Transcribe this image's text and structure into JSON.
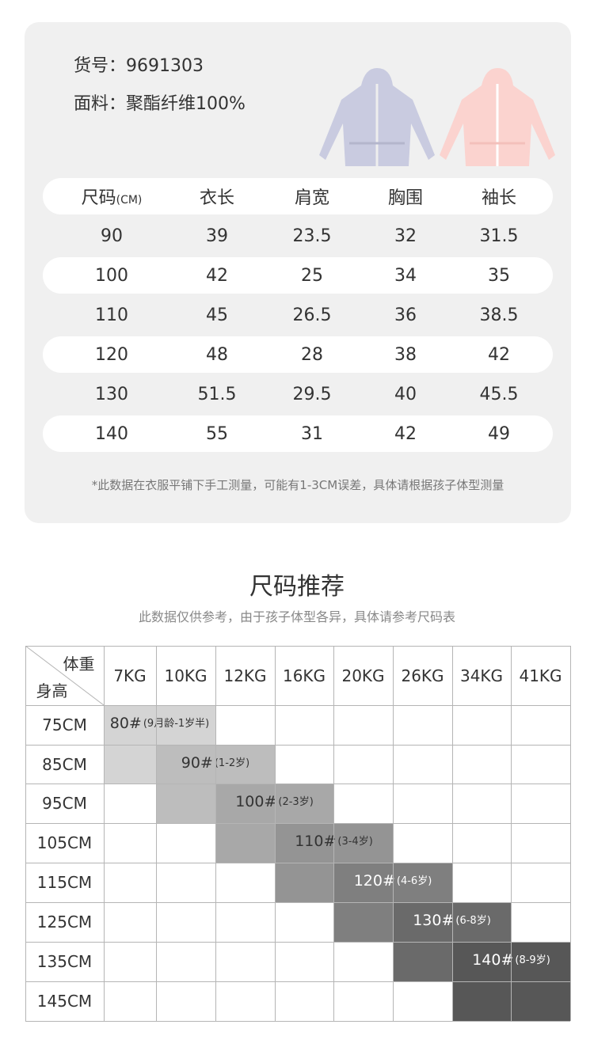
{
  "product": {
    "item_no_label": "货号：",
    "item_no": "9691303",
    "fabric_label": "面料：",
    "fabric": "聚酯纤维100%",
    "jacket_colors": [
      "#c9cbe0",
      "#fbd3cf"
    ]
  },
  "size_table": {
    "headers": [
      "尺码",
      "衣长",
      "肩宽",
      "胸围",
      "袖长"
    ],
    "header_unit": "(CM)",
    "rows": [
      [
        "90",
        "39",
        "23.5",
        "32",
        "31.5"
      ],
      [
        "100",
        "42",
        "25",
        "34",
        "35"
      ],
      [
        "110",
        "45",
        "26.5",
        "36",
        "38.5"
      ],
      [
        "120",
        "48",
        "28",
        "38",
        "42"
      ],
      [
        "130",
        "51.5",
        "29.5",
        "40",
        "45.5"
      ],
      [
        "140",
        "55",
        "31",
        "42",
        "49"
      ]
    ],
    "note": "*此数据在衣服平铺下手工测量，可能有1-3CM误差，具体请根据孩子体型测量"
  },
  "recommend": {
    "title": "尺码推荐",
    "subtitle": "此数据仅供参考，由于孩子体型各异，具体请参考尺码表",
    "corner_weight": "体重",
    "corner_height": "身高",
    "weights": [
      "7KG",
      "10KG",
      "12KG",
      "16KG",
      "20KG",
      "26KG",
      "34KG",
      "41KG"
    ],
    "heights": [
      "75CM",
      "85CM",
      "95CM",
      "105CM",
      "115CM",
      "125CM",
      "135CM",
      "145CM"
    ],
    "sizes": [
      {
        "size": "80#",
        "age": "(9月龄-1岁半)",
        "color": "#d4d4d4"
      },
      {
        "size": "90#",
        "age": "(1-2岁)",
        "color": "#bdbdbd"
      },
      {
        "size": "100#",
        "age": "(2-3岁)",
        "color": "#a8a8a8"
      },
      {
        "size": "110#",
        "age": "(3-4岁)",
        "color": "#949494"
      },
      {
        "size": "120#",
        "age": "(4-6岁)",
        "color": "#7f7f7f"
      },
      {
        "size": "130#",
        "age": "(6-8岁)",
        "color": "#6a6a6a"
      },
      {
        "size": "140#",
        "age": "(8-9岁)",
        "color": "#575757"
      }
    ]
  }
}
